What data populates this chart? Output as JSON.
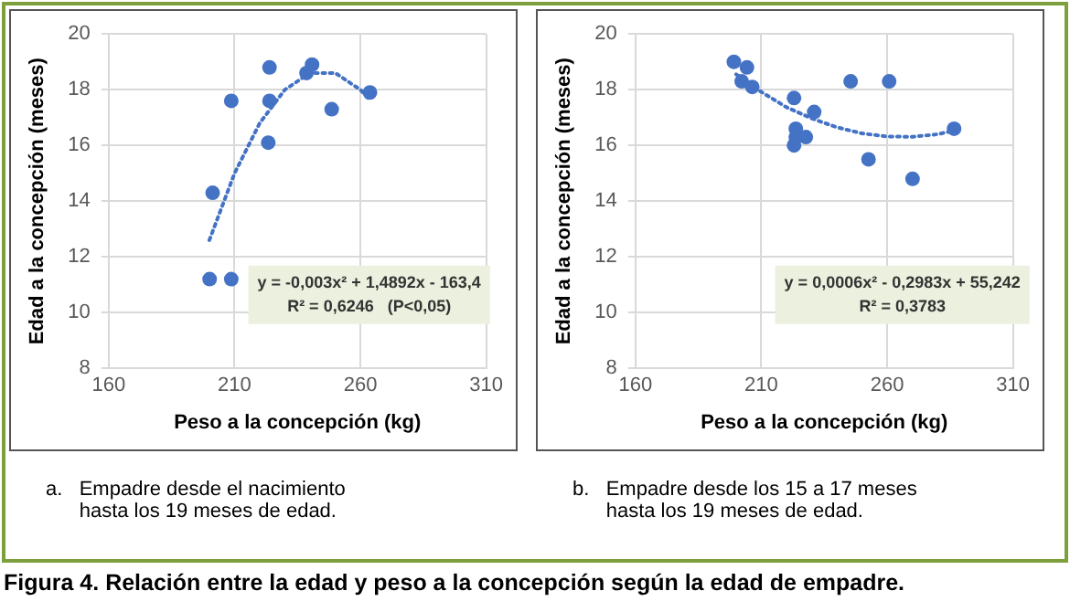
{
  "chart_data": [
    {
      "type": "scatter",
      "title": "Figura 4. Relación entre la edad y peso a la concepción según la edad de empadre.",
      "subtitle": "a.   Empadre desde el nacimiento\n      hasta los 19 meses de edad.",
      "xlabel": "Peso a la concepción (kg)",
      "ylabel": "Edad a la concepción (meses)",
      "annotations": [
        "y = -0,003x² + 1,4892x - 163,4",
        "R² = 0,6246   (P<0,05)"
      ],
      "xlim": [
        160,
        310
      ],
      "xticks": [
        160,
        210,
        260,
        310
      ],
      "ylim": [
        8,
        20
      ],
      "yticks": [
        8,
        10,
        12,
        14,
        16,
        18,
        20
      ],
      "grid": true,
      "legend": false,
      "series": [
        {
          "type": "scatter",
          "color": "#4472c4",
          "marker": "circle",
          "x": [
            200.1,
            201.3,
            208.7,
            208.7,
            223.9,
            223.9,
            223.4,
            238.6,
            240.8,
            248.6,
            263.8
          ],
          "values": [
            11.2,
            14.3,
            17.6,
            11.2,
            18.8,
            17.6,
            16.1,
            18.6,
            18.9,
            17.3,
            17.9
          ]
        },
        {
          "type": "line",
          "color": "#4472c4",
          "marker": "none",
          "line_style": "dotted",
          "x": [
            200,
            210,
            220,
            230,
            240,
            250,
            260,
            263
          ],
          "values": [
            12.6,
            15.0,
            16.8,
            18.0,
            18.6,
            18.6,
            18.0,
            17.7
          ]
        }
      ]
    },
    {
      "type": "scatter",
      "subtitle": "b.   Empadre desde los 15 a 17 meses\n      hasta los 19 meses de edad.",
      "xlabel": "Peso a la concepción (kg)",
      "ylabel": "Edad a la concepción (meses)",
      "annotations": [
        "y = 0,0006x² - 0,2983x + 55,242",
        "R² = 0,3783"
      ],
      "xlim": [
        160,
        310
      ],
      "xticks": [
        160,
        210,
        260,
        310
      ],
      "ylim": [
        8,
        20
      ],
      "yticks": [
        8,
        10,
        12,
        14,
        16,
        18,
        20
      ],
      "grid": true,
      "legend": false,
      "series": [
        {
          "type": "scatter",
          "color": "#4472c4",
          "marker": "circle",
          "x": [
            199.1,
            202.2,
            204.3,
            206.4,
            223.0,
            223.7,
            223.7,
            223.0,
            227.7,
            231.0,
            245.5,
            252.6,
            260.8,
            270.1,
            286.6
          ],
          "values": [
            19.0,
            18.3,
            18.8,
            18.1,
            17.7,
            16.6,
            16.3,
            16.0,
            16.3,
            17.2,
            18.3,
            15.5,
            18.3,
            14.8,
            16.6
          ]
        },
        {
          "type": "line",
          "color": "#4472c4",
          "marker": "none",
          "line_style": "dotted",
          "x": [
            200,
            210,
            220,
            230,
            240,
            250,
            260,
            270,
            280,
            286
          ],
          "values": [
            18.55,
            17.92,
            17.37,
            16.97,
            16.65,
            16.43,
            16.32,
            16.31,
            16.4,
            16.52
          ]
        }
      ]
    }
  ]
}
